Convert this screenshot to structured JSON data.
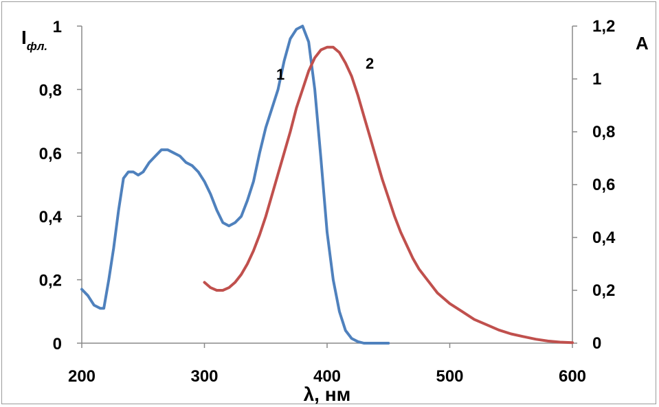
{
  "chart_data": {
    "type": "line",
    "x_axis": {
      "label": "λ, нм",
      "range": [
        200,
        600
      ],
      "ticks": [
        "200",
        "300",
        "400",
        "500",
        "600"
      ]
    },
    "y_left": {
      "label_main": "I",
      "label_sub": "фл.",
      "range": [
        0,
        1
      ],
      "ticks": [
        "0",
        "0,2",
        "0,4",
        "0,6",
        "0,8",
        "1"
      ]
    },
    "y_right": {
      "label": "A",
      "range": [
        0,
        1.2
      ],
      "ticks": [
        "0",
        "0,2",
        "0,4",
        "0,6",
        "0,8",
        "1",
        "1,2"
      ]
    },
    "grid": false,
    "series": [
      {
        "name": "1",
        "axis": "left",
        "color": "#4f81bd",
        "x": [
          200,
          205,
          210,
          215,
          218,
          222,
          226,
          230,
          234,
          238,
          242,
          246,
          250,
          255,
          260,
          265,
          270,
          275,
          280,
          285,
          290,
          295,
          300,
          305,
          310,
          315,
          320,
          325,
          330,
          335,
          340,
          345,
          350,
          355,
          360,
          365,
          370,
          375,
          380,
          385,
          390,
          395,
          400,
          405,
          410,
          415,
          420,
          425,
          430,
          435,
          440,
          445,
          450
        ],
        "values": [
          0.17,
          0.15,
          0.12,
          0.11,
          0.11,
          0.2,
          0.3,
          0.42,
          0.52,
          0.54,
          0.54,
          0.53,
          0.54,
          0.57,
          0.59,
          0.61,
          0.61,
          0.6,
          0.59,
          0.57,
          0.56,
          0.54,
          0.51,
          0.47,
          0.42,
          0.38,
          0.37,
          0.38,
          0.4,
          0.45,
          0.51,
          0.6,
          0.68,
          0.74,
          0.8,
          0.89,
          0.96,
          0.99,
          1.0,
          0.95,
          0.8,
          0.58,
          0.35,
          0.2,
          0.1,
          0.04,
          0.015,
          0.005,
          0.0,
          0.0,
          0.0,
          0.0,
          0.0
        ]
      },
      {
        "name": "2",
        "axis": "right",
        "color": "#c0504d",
        "x": [
          300,
          305,
          310,
          315,
          320,
          325,
          330,
          335,
          340,
          345,
          350,
          355,
          360,
          365,
          370,
          375,
          380,
          385,
          390,
          395,
          400,
          405,
          410,
          415,
          420,
          425,
          430,
          435,
          440,
          445,
          450,
          455,
          460,
          465,
          470,
          475,
          480,
          485,
          490,
          500,
          510,
          520,
          530,
          540,
          550,
          560,
          570,
          580,
          590,
          600
        ],
        "values": [
          0.23,
          0.21,
          0.2,
          0.2,
          0.21,
          0.23,
          0.26,
          0.3,
          0.35,
          0.41,
          0.48,
          0.56,
          0.64,
          0.72,
          0.8,
          0.89,
          0.96,
          1.03,
          1.08,
          1.11,
          1.12,
          1.12,
          1.1,
          1.06,
          1.01,
          0.94,
          0.86,
          0.78,
          0.7,
          0.62,
          0.55,
          0.48,
          0.42,
          0.37,
          0.32,
          0.28,
          0.25,
          0.22,
          0.19,
          0.15,
          0.12,
          0.09,
          0.07,
          0.05,
          0.035,
          0.025,
          0.015,
          0.008,
          0.004,
          0.002
        ]
      }
    ]
  }
}
